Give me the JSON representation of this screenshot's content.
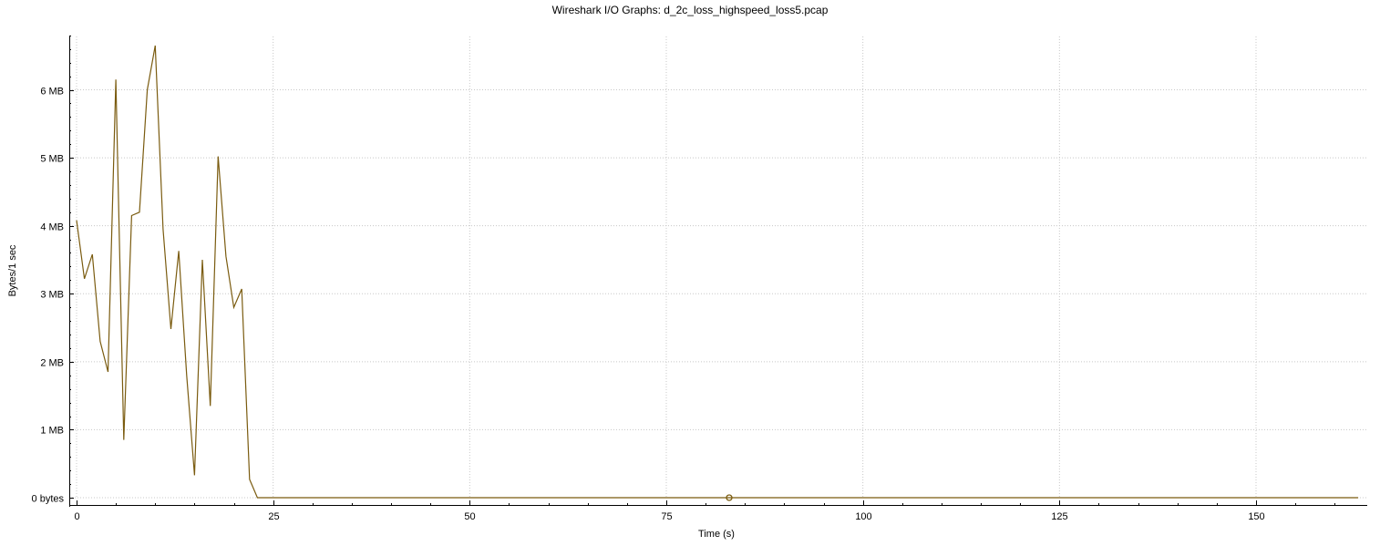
{
  "chart_data": {
    "type": "line",
    "title": "Wireshark I/O Graphs: d_2c_loss_highspeed_loss5.pcap",
    "xlabel": "Time (s)",
    "ylabel": "Bytes/1 sec",
    "xlim": [
      -1,
      164
    ],
    "ylim": [
      0,
      6.85
    ],
    "x_ticks": [
      0,
      25,
      50,
      75,
      100,
      125,
      150
    ],
    "x_tick_labels": [
      "0",
      "25",
      "50",
      "75",
      "100",
      "125",
      "150"
    ],
    "y_ticks": [
      0,
      1,
      2,
      3,
      4,
      5,
      6
    ],
    "y_tick_labels": [
      "0 bytes",
      "1 MB",
      "2 MB",
      "3 MB",
      "4 MB",
      "5 MB",
      "6 MB"
    ],
    "grid": true,
    "series_color": "#7a5b0f",
    "series": [
      {
        "x": [
          0,
          1,
          2,
          3,
          4,
          5,
          6,
          7,
          8,
          9,
          10,
          11,
          12,
          13,
          14,
          15,
          16,
          17,
          18,
          19,
          20,
          21,
          22,
          23,
          24,
          163
        ],
        "y": [
          4.08,
          3.22,
          3.58,
          2.3,
          1.85,
          6.15,
          0.85,
          4.15,
          4.2,
          6.0,
          6.65,
          3.95,
          2.48,
          3.63,
          1.8,
          0.33,
          3.5,
          1.35,
          5.02,
          3.55,
          2.8,
          3.07,
          0.27,
          0,
          0,
          0
        ]
      }
    ],
    "marker": {
      "x": 83,
      "y": 0
    }
  }
}
